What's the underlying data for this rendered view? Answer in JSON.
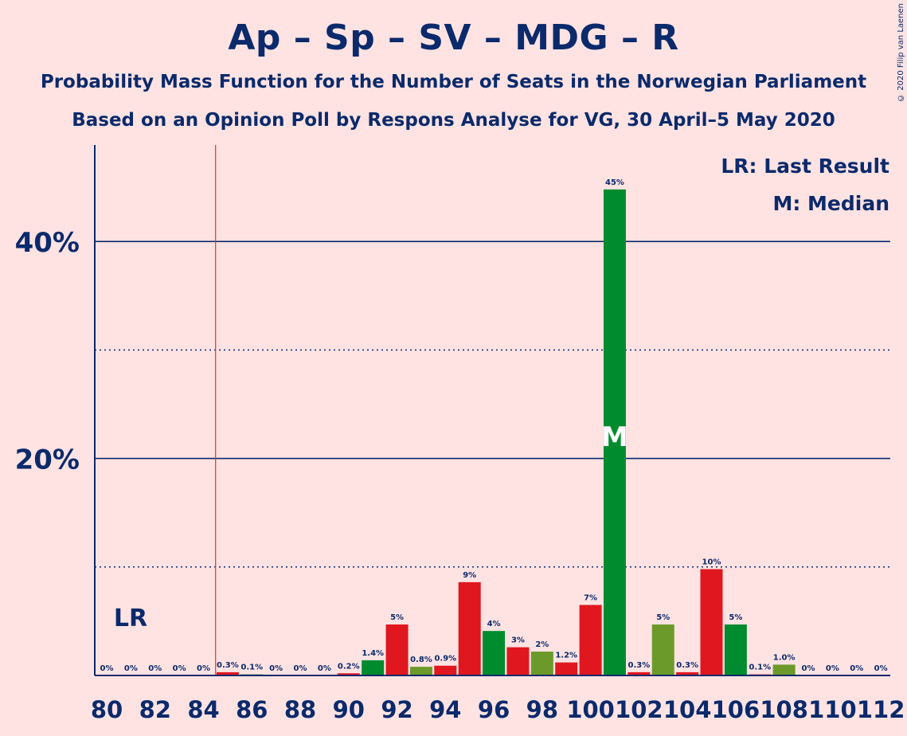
{
  "title": "Ap – Sp – SV – MDG – R",
  "subtitle_1": "Probability Mass Function for the Number of Seats in the Norwegian Parliament",
  "subtitle_2": "Based on an Opinion Poll by Respons Analyse for VG, 30 April–5 May 2020",
  "copyright": "© 2020 Filip van Laenen",
  "legend": {
    "last_result": "LR: Last Result",
    "median": "M: Median"
  },
  "colors": {
    "background": "#FFE3E3",
    "text": "#0B2A6B",
    "red": "#E0171F",
    "green": "#008C2E",
    "olive": "#6B9A2A",
    "last_result_line": "#E8332A",
    "median_mark": "#FFFFFF"
  },
  "chart_data": {
    "type": "bar",
    "ylim": [
      0,
      49
    ],
    "yticks_major": [
      20,
      40
    ],
    "ytick_labels": [
      "20%",
      "40%"
    ],
    "yticks_minor": [
      10,
      30
    ],
    "xtick_labels": [
      "80",
      "82",
      "84",
      "86",
      "88",
      "90",
      "92",
      "94",
      "96",
      "98",
      "100",
      "102",
      "104",
      "106",
      "108",
      "110",
      "112"
    ],
    "last_result": {
      "seats": 84.5,
      "label": "LR"
    },
    "median": {
      "seats": 101,
      "label": "M"
    },
    "bars": [
      {
        "seats": 80,
        "value": 0,
        "label": "0%",
        "color": "red"
      },
      {
        "seats": 81,
        "value": 0,
        "label": "0%",
        "color": "green"
      },
      {
        "seats": 82,
        "value": 0,
        "label": "0%",
        "color": "olive"
      },
      {
        "seats": 83,
        "value": 0,
        "label": "0%",
        "color": "red"
      },
      {
        "seats": 84,
        "value": 0,
        "label": "0%",
        "color": "green"
      },
      {
        "seats": 85,
        "value": 0.3,
        "label": "0.3%",
        "color": "red"
      },
      {
        "seats": 86,
        "value": 0.1,
        "label": "0.1%",
        "color": "green"
      },
      {
        "seats": 87,
        "value": 0,
        "label": "0%",
        "color": "olive"
      },
      {
        "seats": 88,
        "value": 0,
        "label": "0%",
        "color": "red"
      },
      {
        "seats": 89,
        "value": 0,
        "label": "0%",
        "color": "green"
      },
      {
        "seats": 90,
        "value": 0.2,
        "label": "0.2%",
        "color": "red"
      },
      {
        "seats": 91,
        "value": 1.4,
        "label": "1.4%",
        "color": "green"
      },
      {
        "seats": 92,
        "value": 4.7,
        "label": "5%",
        "color": "red"
      },
      {
        "seats": 93,
        "value": 0.8,
        "label": "0.8%",
        "color": "olive"
      },
      {
        "seats": 94,
        "value": 0.9,
        "label": "0.9%",
        "color": "red"
      },
      {
        "seats": 95,
        "value": 8.6,
        "label": "9%",
        "color": "red"
      },
      {
        "seats": 96,
        "value": 4.1,
        "label": "4%",
        "color": "green"
      },
      {
        "seats": 97,
        "value": 2.6,
        "label": "3%",
        "color": "red"
      },
      {
        "seats": 98,
        "value": 2.2,
        "label": "2%",
        "color": "olive"
      },
      {
        "seats": 99,
        "value": 1.2,
        "label": "1.2%",
        "color": "red"
      },
      {
        "seats": 100,
        "value": 6.5,
        "label": "7%",
        "color": "red"
      },
      {
        "seats": 101,
        "value": 44.8,
        "label": "45%",
        "color": "green"
      },
      {
        "seats": 102,
        "value": 0.3,
        "label": "0.3%",
        "color": "red"
      },
      {
        "seats": 103,
        "value": 4.7,
        "label": "5%",
        "color": "olive"
      },
      {
        "seats": 104,
        "value": 0.3,
        "label": "0.3%",
        "color": "red"
      },
      {
        "seats": 105,
        "value": 9.8,
        "label": "10%",
        "color": "red"
      },
      {
        "seats": 106,
        "value": 4.7,
        "label": "5%",
        "color": "green"
      },
      {
        "seats": 107,
        "value": 0.1,
        "label": "0.1%",
        "color": "red"
      },
      {
        "seats": 108,
        "value": 1.0,
        "label": "1.0%",
        "color": "olive"
      },
      {
        "seats": 109,
        "value": 0,
        "label": "0%",
        "color": "red"
      },
      {
        "seats": 110,
        "value": 0,
        "label": "0%",
        "color": "green"
      },
      {
        "seats": 111,
        "value": 0,
        "label": "0%",
        "color": "olive"
      },
      {
        "seats": 112,
        "value": 0,
        "label": "0%",
        "color": "red"
      }
    ]
  }
}
